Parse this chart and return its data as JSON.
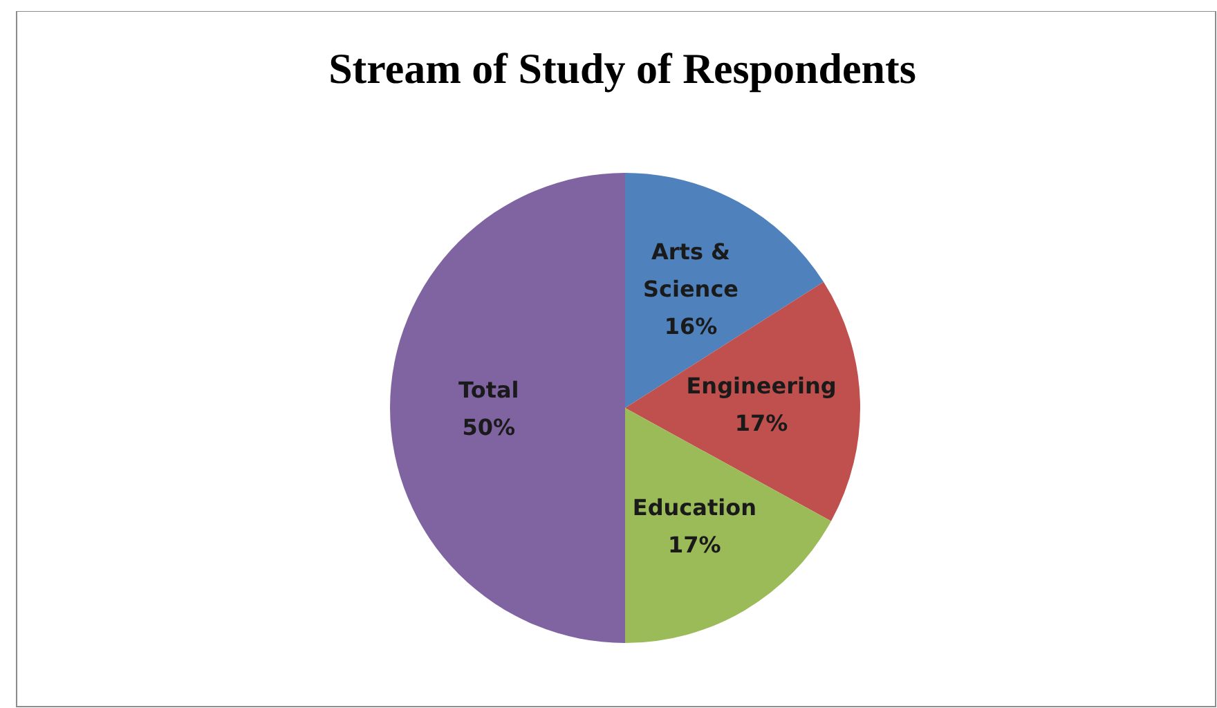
{
  "chart_data": {
    "type": "pie",
    "title": "Stream of Study of Respondents",
    "categories": [
      "Arts & Science",
      "Engineering",
      "Education",
      "Total"
    ],
    "values": [
      16,
      17,
      17,
      50
    ],
    "colors": [
      "#4f81bd",
      "#c0504d",
      "#9bbb59",
      "#8064a2"
    ],
    "value_labels": [
      "16%",
      "17%",
      "17%",
      "50%"
    ]
  }
}
